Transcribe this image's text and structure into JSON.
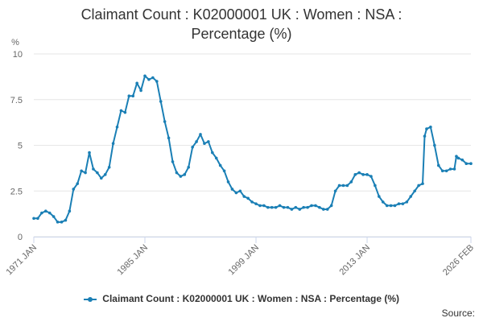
{
  "chart_data": {
    "type": "line",
    "title": "Claimant Count : K02000001 UK : Women : NSA : Percentage (%)",
    "title_lines": [
      "Claimant Count : K02000001 UK : Women : NSA :",
      "Percentage (%)"
    ],
    "ylabel": "%",
    "xlabel": "",
    "ylim": [
      0,
      10
    ],
    "y_ticks": [
      "0",
      "2.5",
      "5",
      "7.5",
      "10"
    ],
    "y_tick_values": [
      0,
      2.5,
      5,
      7.5,
      10
    ],
    "x_range": [
      1971.0,
      2026.083
    ],
    "x_ticks": [
      "1971 JAN",
      "1985 JAN",
      "1999 JAN",
      "2013 JAN",
      "2026 FEB"
    ],
    "x_tick_values": [
      1971.0,
      1985.0,
      1999.0,
      2013.0,
      2026.083
    ],
    "grid": "horizontal",
    "legend_position": "bottom",
    "series": [
      {
        "name": "Claimant Count : K02000001 UK : Women : NSA : Percentage (%)",
        "color": "#1a7fb5",
        "points": [
          [
            1971.0,
            1.0
          ],
          [
            1971.5,
            1.0
          ],
          [
            1972.0,
            1.3
          ],
          [
            1972.5,
            1.4
          ],
          [
            1973.0,
            1.3
          ],
          [
            1973.5,
            1.1
          ],
          [
            1974.0,
            0.8
          ],
          [
            1974.5,
            0.8
          ],
          [
            1975.0,
            0.9
          ],
          [
            1975.5,
            1.4
          ],
          [
            1976.0,
            2.6
          ],
          [
            1976.5,
            2.9
          ],
          [
            1977.0,
            3.6
          ],
          [
            1977.5,
            3.5
          ],
          [
            1978.0,
            4.6
          ],
          [
            1978.5,
            3.7
          ],
          [
            1979.0,
            3.5
          ],
          [
            1979.5,
            3.2
          ],
          [
            1980.0,
            3.4
          ],
          [
            1980.5,
            3.8
          ],
          [
            1981.0,
            5.1
          ],
          [
            1981.5,
            6.0
          ],
          [
            1982.0,
            6.9
          ],
          [
            1982.5,
            6.8
          ],
          [
            1983.0,
            7.7
          ],
          [
            1983.5,
            7.7
          ],
          [
            1984.0,
            8.4
          ],
          [
            1984.5,
            8.0
          ],
          [
            1985.0,
            8.8
          ],
          [
            1985.5,
            8.6
          ],
          [
            1986.0,
            8.7
          ],
          [
            1986.5,
            8.5
          ],
          [
            1987.0,
            7.4
          ],
          [
            1987.5,
            6.3
          ],
          [
            1988.0,
            5.4
          ],
          [
            1988.5,
            4.1
          ],
          [
            1989.0,
            3.5
          ],
          [
            1989.5,
            3.3
          ],
          [
            1990.0,
            3.4
          ],
          [
            1990.5,
            3.8
          ],
          [
            1991.0,
            4.9
          ],
          [
            1991.5,
            5.2
          ],
          [
            1992.0,
            5.6
          ],
          [
            1992.5,
            5.1
          ],
          [
            1993.0,
            5.2
          ],
          [
            1993.5,
            4.6
          ],
          [
            1994.0,
            4.3
          ],
          [
            1994.5,
            3.9
          ],
          [
            1995.0,
            3.6
          ],
          [
            1995.5,
            3.0
          ],
          [
            1996.0,
            2.6
          ],
          [
            1996.5,
            2.4
          ],
          [
            1997.0,
            2.5
          ],
          [
            1997.5,
            2.2
          ],
          [
            1998.0,
            2.1
          ],
          [
            1998.5,
            1.9
          ],
          [
            1999.0,
            1.8
          ],
          [
            1999.5,
            1.7
          ],
          [
            2000.0,
            1.7
          ],
          [
            2000.5,
            1.6
          ],
          [
            2001.0,
            1.6
          ],
          [
            2001.5,
            1.6
          ],
          [
            2002.0,
            1.7
          ],
          [
            2002.5,
            1.6
          ],
          [
            2003.0,
            1.6
          ],
          [
            2003.5,
            1.5
          ],
          [
            2004.0,
            1.6
          ],
          [
            2004.5,
            1.5
          ],
          [
            2005.0,
            1.6
          ],
          [
            2005.5,
            1.6
          ],
          [
            2006.0,
            1.7
          ],
          [
            2006.5,
            1.7
          ],
          [
            2007.0,
            1.6
          ],
          [
            2007.5,
            1.5
          ],
          [
            2008.0,
            1.5
          ],
          [
            2008.5,
            1.7
          ],
          [
            2009.0,
            2.5
          ],
          [
            2009.5,
            2.8
          ],
          [
            2010.0,
            2.8
          ],
          [
            2010.5,
            2.8
          ],
          [
            2011.0,
            3.0
          ],
          [
            2011.5,
            3.4
          ],
          [
            2012.0,
            3.5
          ],
          [
            2012.5,
            3.4
          ],
          [
            2013.0,
            3.4
          ],
          [
            2013.5,
            3.3
          ],
          [
            2014.0,
            2.8
          ],
          [
            2014.5,
            2.2
          ],
          [
            2015.0,
            1.9
          ],
          [
            2015.5,
            1.7
          ],
          [
            2016.0,
            1.7
          ],
          [
            2016.5,
            1.7
          ],
          [
            2017.0,
            1.8
          ],
          [
            2017.5,
            1.8
          ],
          [
            2018.0,
            1.9
          ],
          [
            2018.5,
            2.2
          ],
          [
            2019.0,
            2.5
          ],
          [
            2019.5,
            2.8
          ],
          [
            2020.0,
            2.9
          ],
          [
            2020.25,
            5.5
          ],
          [
            2020.5,
            5.9
          ],
          [
            2021.0,
            6.0
          ],
          [
            2021.5,
            5.0
          ],
          [
            2022.0,
            3.9
          ],
          [
            2022.5,
            3.6
          ],
          [
            2023.0,
            3.6
          ],
          [
            2023.5,
            3.7
          ],
          [
            2024.0,
            3.7
          ],
          [
            2024.25,
            4.4
          ],
          [
            2024.5,
            4.3
          ],
          [
            2025.0,
            4.2
          ],
          [
            2025.5,
            4.0
          ],
          [
            2026.083,
            4.0
          ]
        ]
      }
    ]
  },
  "credits": "Source:"
}
